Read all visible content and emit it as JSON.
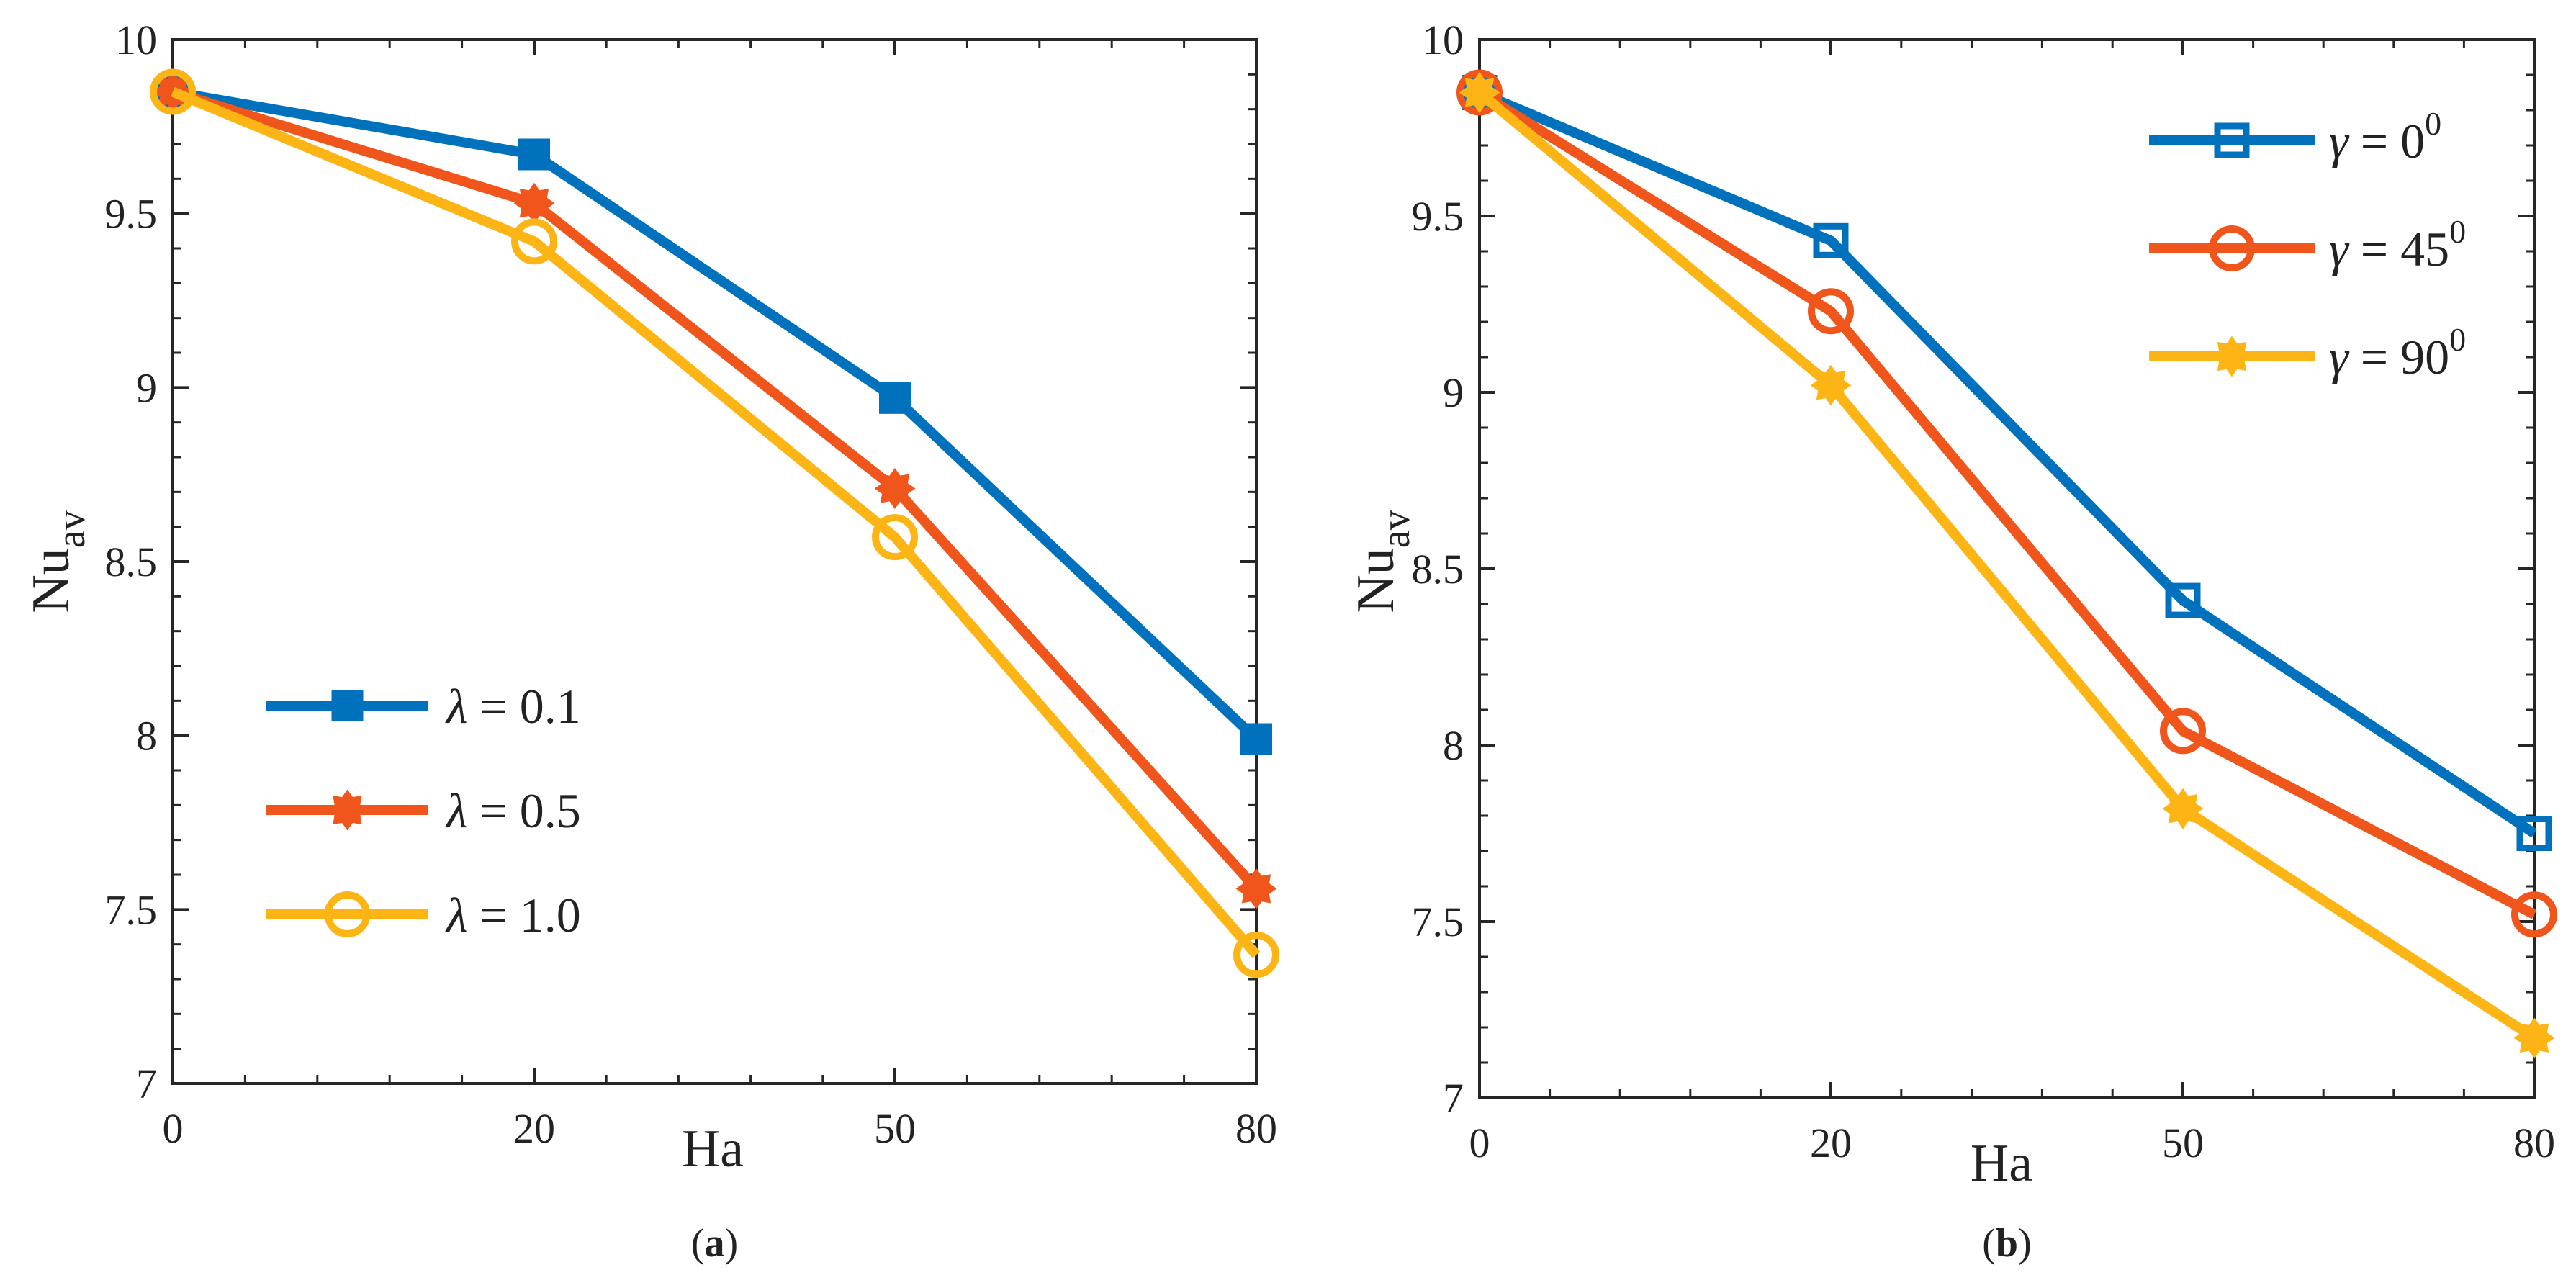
{
  "chart_data": [
    {
      "type": "line",
      "caption_letter": "a",
      "xlabel": "Ha",
      "ylabel_main": "Nu",
      "ylabel_sub": "av",
      "categories": [
        "0",
        "20",
        "50",
        "80"
      ],
      "yticks": [
        "7",
        "7.5",
        "8",
        "8.5",
        "9",
        "9.5",
        "10"
      ],
      "ylim": [
        7,
        10
      ],
      "legend_position": "lower-left",
      "series": [
        {
          "name_symbol": "λ",
          "name_value": " = 0.1",
          "color": "#0072BD",
          "marker": "filled-square",
          "values": [
            9.85,
            9.67,
            8.97,
            7.99
          ]
        },
        {
          "name_symbol": "λ",
          "name_value": " = 0.5",
          "color": "#F0561C",
          "marker": "filled-star",
          "values": [
            9.85,
            9.53,
            8.71,
            7.56
          ]
        },
        {
          "name_symbol": "λ",
          "name_value": " = 1.0",
          "color": "#FDB515",
          "marker": "open-circle",
          "values": [
            9.85,
            9.42,
            8.57,
            7.37
          ]
        }
      ]
    },
    {
      "type": "line",
      "caption_letter": "b",
      "xlabel": "Ha",
      "ylabel_main": "Nu",
      "ylabel_sub": "av",
      "categories": [
        "0",
        "20",
        "50",
        "80"
      ],
      "yticks": [
        "7",
        "7.5",
        "8",
        "8.5",
        "9",
        "9.5",
        "10"
      ],
      "ylim": [
        7,
        10
      ],
      "legend_position": "top-right",
      "series": [
        {
          "name_symbol": "γ",
          "name_value": " = 0",
          "name_sup": "0",
          "color": "#0072BD",
          "marker": "open-square",
          "values": [
            9.85,
            9.43,
            8.41,
            7.75
          ]
        },
        {
          "name_symbol": "γ",
          "name_value": " = 45",
          "name_sup": "0",
          "color": "#F0561C",
          "marker": "open-circle",
          "values": [
            9.85,
            9.23,
            8.04,
            7.52
          ]
        },
        {
          "name_symbol": "γ",
          "name_value": " = 90",
          "name_sup": "0",
          "color": "#FDB515",
          "marker": "filled-star",
          "values": [
            9.85,
            9.02,
            7.82,
            7.17
          ]
        }
      ]
    }
  ]
}
